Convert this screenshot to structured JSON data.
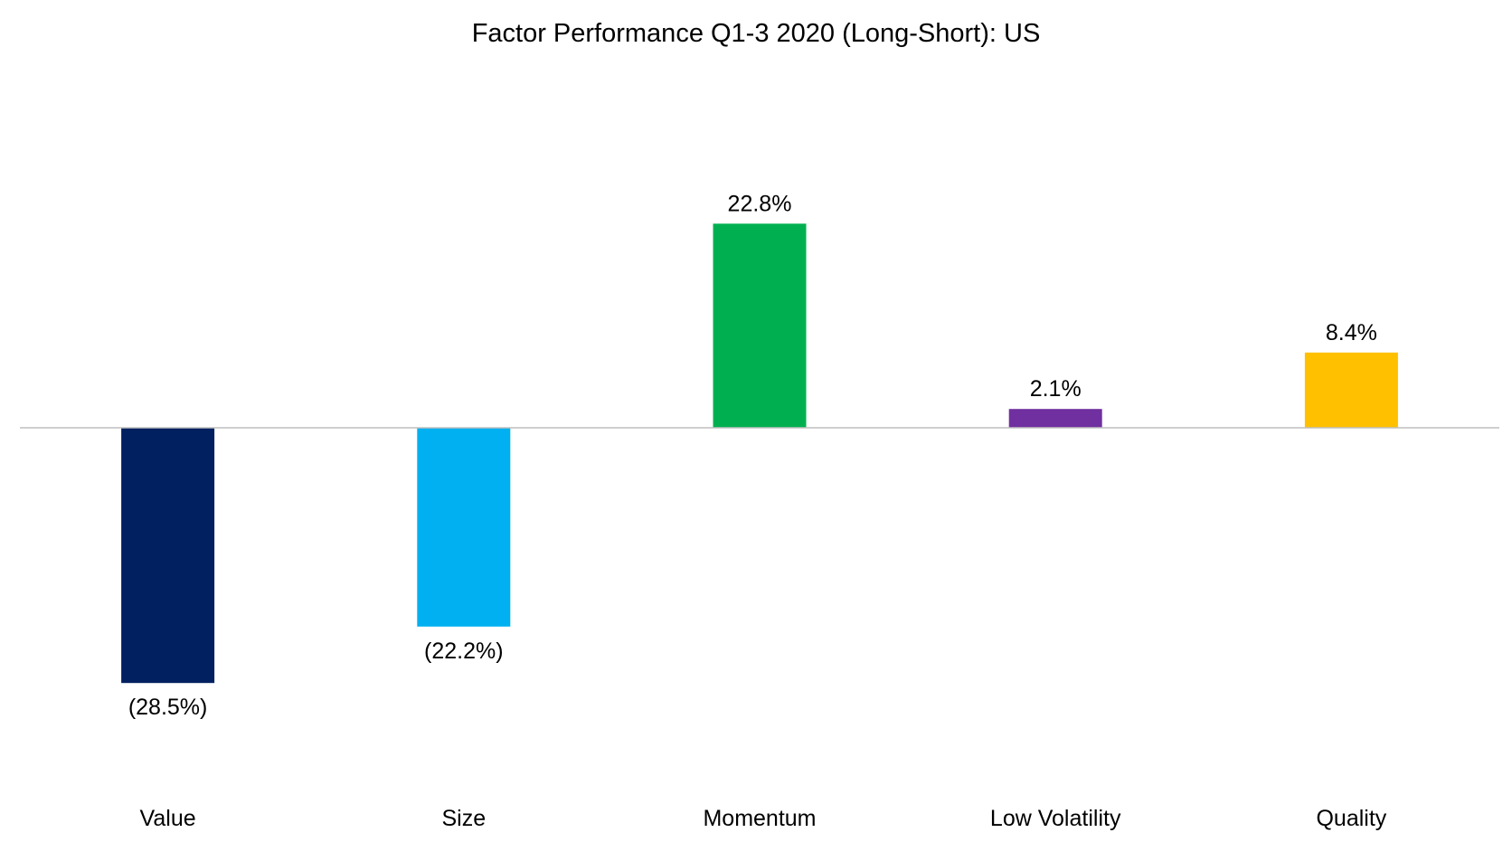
{
  "chart_data": {
    "type": "bar",
    "title": "Factor Performance Q1-3 2020 (Long-Short): US",
    "categories": [
      "Value",
      "Size",
      "Momentum",
      "Low Volatility",
      "Quality"
    ],
    "values": [
      -28.5,
      -22.2,
      22.8,
      2.1,
      8.4
    ],
    "data_labels": [
      "(28.5%)",
      "(22.2%)",
      "22.8%",
      "2.1%",
      "8.4%"
    ],
    "colors": [
      "#002060",
      "#00B0F0",
      "#00B050",
      "#7030A0",
      "#FFC000"
    ],
    "axis_line_color": "#BFBFBF",
    "grid": false,
    "legend": "none",
    "ylim": [
      -40,
      35
    ]
  }
}
